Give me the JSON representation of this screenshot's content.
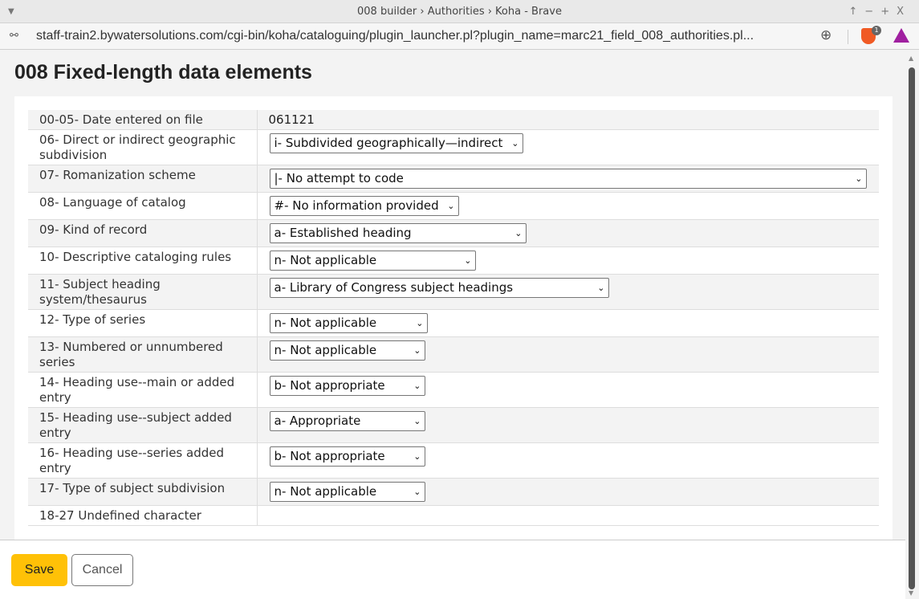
{
  "window": {
    "title": "008 builder › Authorities › Koha - Brave",
    "url": "staff-train2.bywatersolutions.com/cgi-bin/koha/cataloguing/plugin_launcher.pl?plugin_name=marc21_field_008_authorities.pl...",
    "brave_badge": "1"
  },
  "page": {
    "title": "008 Fixed-length data elements"
  },
  "rows": [
    {
      "label": "00-05- Date entered on file",
      "value": "061121",
      "type": "text"
    },
    {
      "label": "06- Direct or indirect geographic subdivision",
      "value": "i- Subdivided geographically—indirect",
      "type": "select"
    },
    {
      "label": "07- Romanization scheme",
      "value": "|- No attempt to code",
      "type": "select"
    },
    {
      "label": "08- Language of catalog",
      "value": "#- No information provided",
      "type": "select"
    },
    {
      "label": "09- Kind of record",
      "value": "a- Established heading",
      "type": "select"
    },
    {
      "label": "10- Descriptive cataloging rules",
      "value": "n- Not applicable",
      "type": "select"
    },
    {
      "label": "11- Subject heading system/thesaurus",
      "value": "a- Library of Congress subject headings",
      "type": "select"
    },
    {
      "label": "12- Type of series",
      "value": "n- Not applicable",
      "type": "select"
    },
    {
      "label": "13- Numbered or unnumbered series",
      "value": "n- Not applicable",
      "type": "select"
    },
    {
      "label": "14- Heading use--main or added entry",
      "value": "b- Not appropriate",
      "type": "select"
    },
    {
      "label": "15- Heading use--subject added entry",
      "value": "a- Appropriate",
      "type": "select"
    },
    {
      "label": "16- Heading use--series added entry",
      "value": "b- Not appropriate",
      "type": "select"
    },
    {
      "label": "17- Type of subject subdivision",
      "value": "n- Not applicable",
      "type": "select"
    },
    {
      "label": "18-27 Undefined character",
      "value": "",
      "type": "text"
    }
  ],
  "footer": {
    "save_label": "Save",
    "cancel_label": "Cancel"
  },
  "colors": {
    "save": "#ffc107",
    "row_stripe": "#f3f3f3"
  }
}
